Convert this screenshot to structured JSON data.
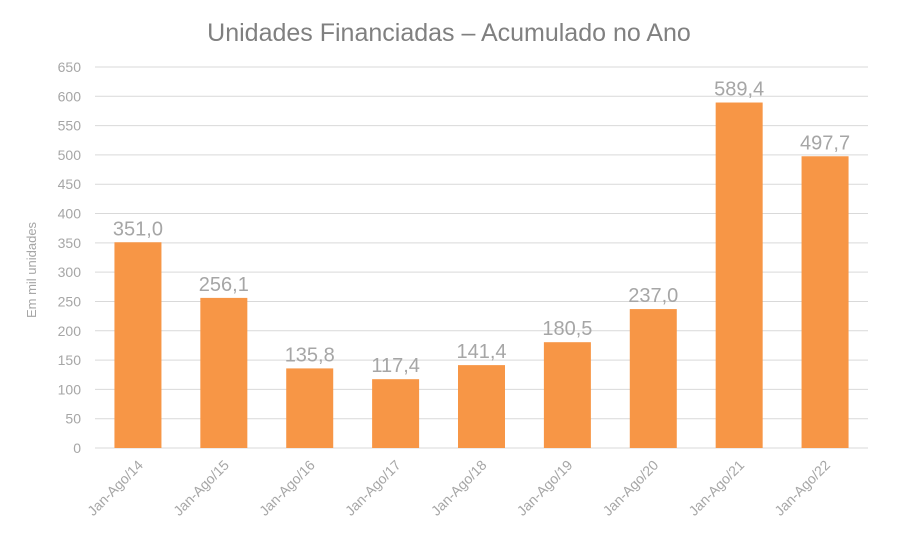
{
  "chart_data": {
    "type": "bar",
    "title": "Unidades Financiadas – Acumulado no Ano",
    "xlabel": "",
    "ylabel": "Em mil unidades",
    "categories": [
      "Jan-Ago/14",
      "Jan-Ago/15",
      "Jan-Ago/16",
      "Jan-Ago/17",
      "Jan-Ago/18",
      "Jan-Ago/19",
      "Jan-Ago/20",
      "Jan-Ago/21",
      "Jan-Ago/22"
    ],
    "values": [
      351.0,
      256.1,
      135.8,
      117.4,
      141.4,
      180.5,
      237.0,
      589.4,
      497.7
    ],
    "data_labels": [
      "351,0",
      "256,1",
      "135,8",
      "117,4",
      "141,4",
      "180,5",
      "237,0",
      "589,4",
      "497,7"
    ],
    "ylim": [
      0,
      650
    ],
    "yticks": [
      0,
      50,
      100,
      150,
      200,
      250,
      300,
      350,
      400,
      450,
      500,
      550,
      600,
      650
    ],
    "grid": true,
    "legend": "none",
    "colors": {
      "bar": "#F79646",
      "text": "#A6A6A6",
      "title": "#808080",
      "grid": "#D9D9D9"
    }
  }
}
